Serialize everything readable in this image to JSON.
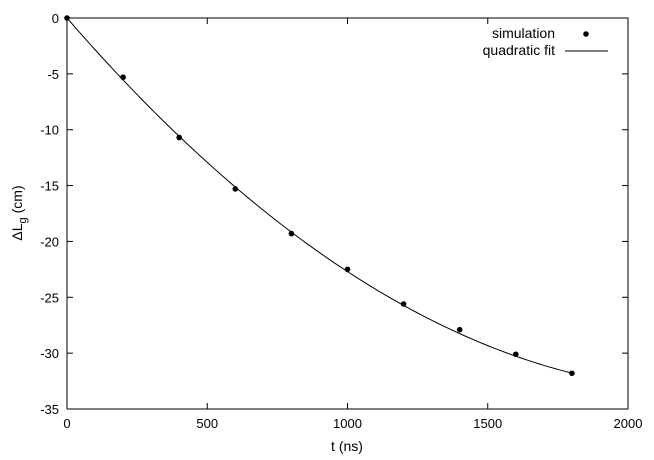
{
  "chart_data": {
    "type": "scatter",
    "xlabel": "t (ns)",
    "ylabel": {
      "main": "ΔL",
      "subscript": "g",
      "unit": "(cm)"
    },
    "xlim": [
      0,
      2000
    ],
    "ylim": [
      -35,
      0
    ],
    "xticks": [
      0,
      500,
      1000,
      1500,
      2000
    ],
    "yticks": [
      0,
      -5,
      -10,
      -15,
      -20,
      -25,
      -30,
      -35
    ],
    "grid": false,
    "legend_position": "top-right",
    "series": [
      {
        "name": "simulation",
        "kind": "points",
        "color": "#000000",
        "x": [
          0,
          200,
          400,
          600,
          800,
          1000,
          1200,
          1400,
          1600,
          1800
        ],
        "y": [
          0,
          -5.3,
          -10.7,
          -15.3,
          -19.3,
          -22.5,
          -25.6,
          -27.9,
          -30.1,
          -31.8
        ]
      },
      {
        "name": "quadratic fit",
        "kind": "line",
        "color": "#000000",
        "coefficients": {
          "c0": 0,
          "c1": -0.029,
          "c2": 6.3e-06
        },
        "x_range": [
          0,
          1800
        ]
      }
    ]
  }
}
